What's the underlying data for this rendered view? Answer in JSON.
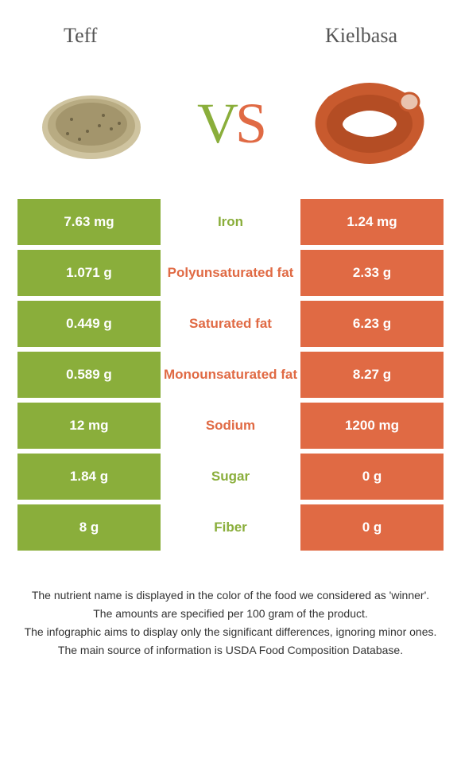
{
  "colors": {
    "left": "#8aae3b",
    "right": "#e06a44",
    "title": "#555555",
    "footer": "#333333"
  },
  "foods": {
    "left_name": "Teff",
    "right_name": "Kielbasa"
  },
  "vs": {
    "v": "V",
    "s": "S"
  },
  "rows": [
    {
      "left": "7.63 mg",
      "label": "Iron",
      "right": "1.24 mg",
      "winner": "left"
    },
    {
      "left": "1.071 g",
      "label": "Polyunsaturated fat",
      "right": "2.33 g",
      "winner": "right"
    },
    {
      "left": "0.449 g",
      "label": "Saturated fat",
      "right": "6.23 g",
      "winner": "right"
    },
    {
      "left": "0.589 g",
      "label": "Monounsaturated fat",
      "right": "8.27 g",
      "winner": "right"
    },
    {
      "left": "12 mg",
      "label": "Sodium",
      "right": "1200 mg",
      "winner": "right"
    },
    {
      "left": "1.84 g",
      "label": "Sugar",
      "right": "0 g",
      "winner": "left"
    },
    {
      "left": "8 g",
      "label": "Fiber",
      "right": "0 g",
      "winner": "left"
    }
  ],
  "footer": {
    "l1": "The nutrient name is displayed in the color of the food we considered as 'winner'.",
    "l2": "The amounts are specified per 100 gram of the product.",
    "l3": "The infographic aims to display only the significant differences, ignoring minor ones.",
    "l4": "The main source of information is USDA Food Composition Database."
  }
}
